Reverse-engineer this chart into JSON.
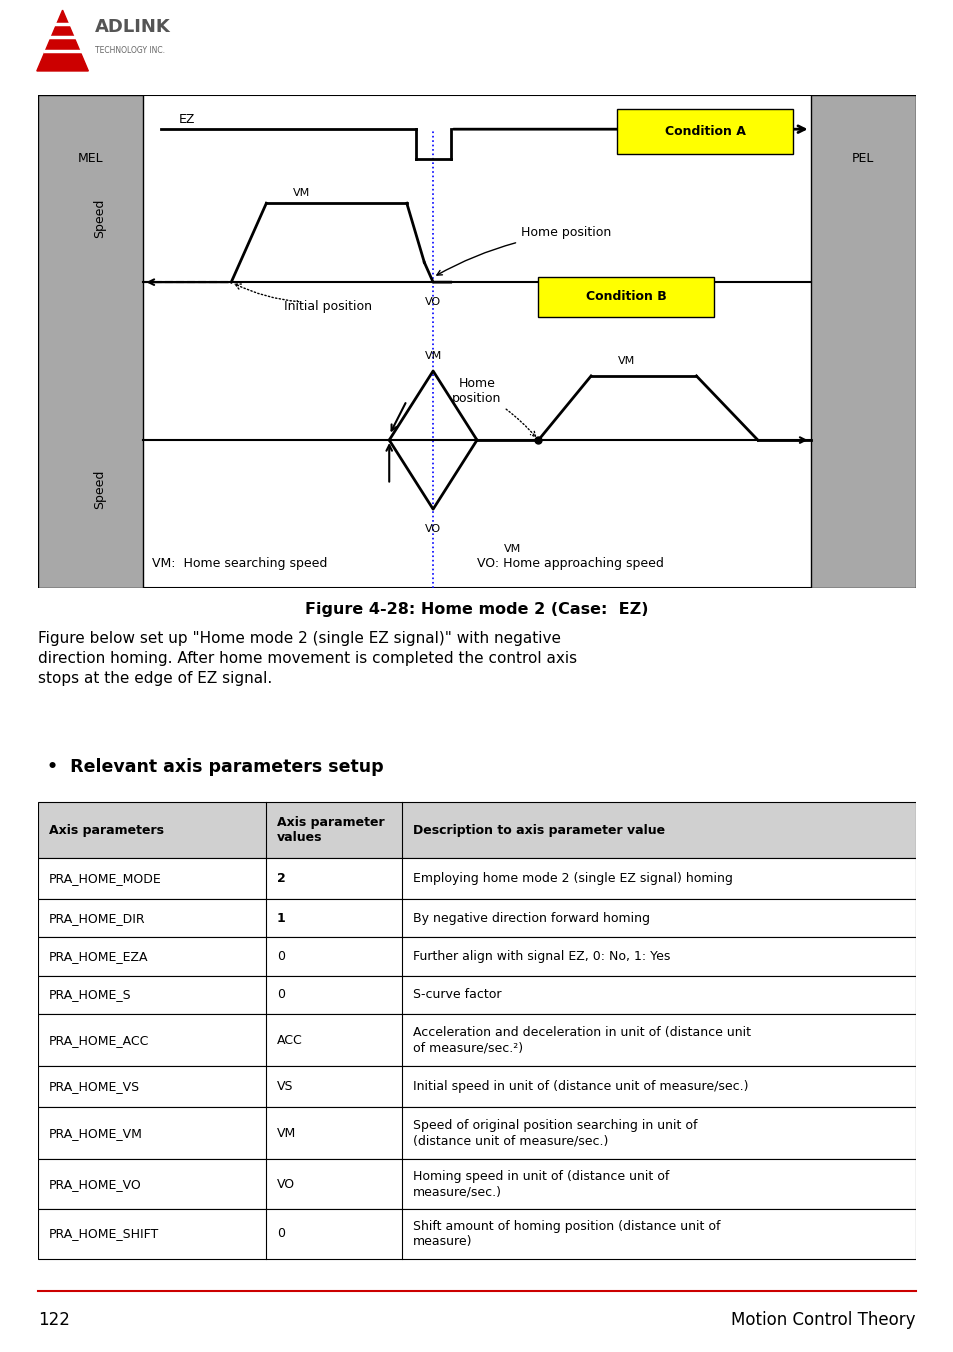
{
  "page_bg": "#ffffff",
  "figure_title": "Figure 4-28: Home mode 2 (Case:  EZ)",
  "condition_a_label": "Condition A",
  "condition_b_label": "Condition B",
  "mel_label": "MEL",
  "pel_label": "PEL",
  "ez_label": "EZ",
  "vm_label": "VM",
  "vo_label": "VO",
  "speed_label": "Speed",
  "home_pos_label": "Home position",
  "home_pos2_label": "Home\nposition",
  "initial_pos_label": "Initial position",
  "legend_vm": "VM:  Home searching speed",
  "legend_vo": "VO: Home approaching speed",
  "body_text1": "Figure below set up \"Home mode 2 (single EZ signal)\" with negative",
  "body_text2": "direction homing. After home movement is completed the control axis",
  "body_text3": "stops at the edge of EZ signal.",
  "bullet_title": "Relevant axis parameters setup",
  "table_headers": [
    "Axis parameters",
    "Axis parameter\nvalues",
    "Description to axis parameter value"
  ],
  "table_rows": [
    [
      "PRA_HOME_MODE",
      "2",
      "Employing home mode 2 (single EZ signal) homing"
    ],
    [
      "PRA_HOME_DIR",
      "1",
      "By negative direction forward homing"
    ],
    [
      "PRA_HOME_EZA",
      "0",
      "Further align with signal EZ, 0: No, 1: Yes"
    ],
    [
      "PRA_HOME_S",
      "0",
      "S-curve factor"
    ],
    [
      "PRA_HOME_ACC",
      "ACC",
      "Acceleration and deceleration in unit of (distance unit\nof measure/sec.²)"
    ],
    [
      "PRA_HOME_VS",
      "VS",
      "Initial speed in unit of (distance unit of measure/sec.)"
    ],
    [
      "PRA_HOME_VM",
      "VM",
      "Speed of original position searching in unit of\n(distance unit of measure/sec.)"
    ],
    [
      "PRA_HOME_VO",
      "VO",
      "Homing speed in unit of (distance unit of\nmeasure/sec.)"
    ],
    [
      "PRA_HOME_SHIFT",
      "0",
      "Shift amount of homing position (distance unit of\nmeasure)"
    ]
  ],
  "page_number": "122",
  "footer_text": "Motion Control Theory",
  "yellow_color": "#ffff00",
  "gray_color": "#a8a8a8",
  "table_header_bg": "#d0d0d0",
  "red_color": "#cc0000",
  "blue_color": "#0000ff"
}
